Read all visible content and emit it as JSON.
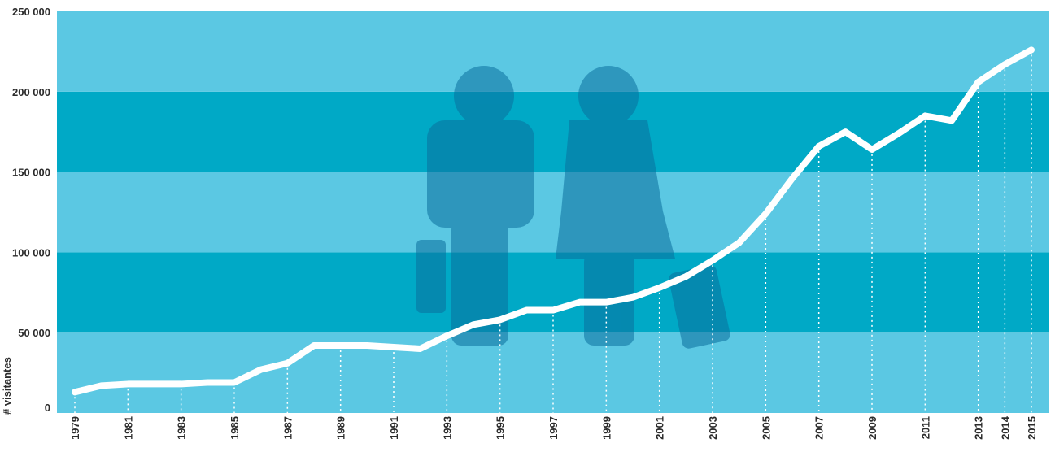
{
  "chart_data": {
    "type": "line",
    "y_label": "# visitantes",
    "categories": [
      "1979",
      null,
      "1981",
      null,
      "1983",
      null,
      "1985",
      null,
      "1987",
      null,
      "1989",
      null,
      "1991",
      null,
      "1993",
      null,
      "1995",
      null,
      "1997",
      null,
      "1999",
      null,
      "2001",
      null,
      "2003",
      null,
      "2005",
      null,
      "2007",
      null,
      "2009",
      null,
      "2011",
      null,
      "2013",
      "2014",
      "2015"
    ],
    "series": [
      {
        "name": null,
        "color": "#ffffff",
        "values": [
          13000,
          17000,
          18000,
          18000,
          18000,
          19000,
          19000,
          27000,
          31000,
          42000,
          42000,
          42000,
          41000,
          40000,
          48000,
          55000,
          58000,
          64000,
          64000,
          69000,
          69000,
          72000,
          78000,
          85000,
          95000,
          106000,
          124000,
          146000,
          166000,
          175000,
          164000,
          174000,
          185000,
          182000,
          206000,
          217000,
          226000
        ]
      }
    ],
    "ylim": [
      0,
      250000
    ],
    "yticks": [
      0,
      {
        "value": 50000,
        "label": "50 000"
      },
      {
        "value": 100000,
        "label": "100 000"
      },
      {
        "value": 150000,
        "label": "150 000"
      },
      {
        "value": 200000,
        "label": "200 000"
      },
      {
        "value": 250000,
        "label": "250 000"
      }
    ],
    "band_colors": [
      "#5bc8e3",
      "#00a9c6"
    ]
  }
}
